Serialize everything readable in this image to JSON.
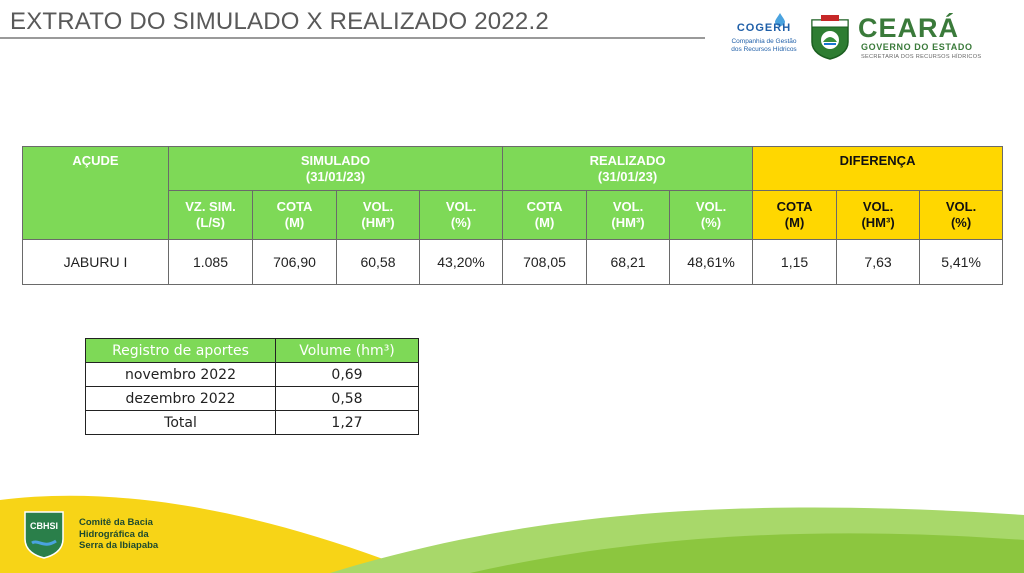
{
  "header": {
    "title": "EXTRATO DO SIMULADO X REALIZADO 2022.2",
    "cogerh_name": "COGERH",
    "cogerh_sub": [
      "Companhia de Gestão",
      "dos Recursos Hídricos"
    ],
    "state_name": "CEARÁ",
    "state_gov": "GOVERNO DO ESTADO",
    "state_sec": "SECRETARIA DOS RECURSOS HÍDRICOS"
  },
  "main_table": {
    "col_acude": "AÇUDE",
    "group_simulado": "SIMULADO",
    "group_simulado_date": "(31/01/23)",
    "group_realizado": "REALIZADO",
    "group_realizado_date": "(31/01/23)",
    "group_diferenca": "DIFERENÇA",
    "sub_headers": [
      [
        "VZ. SIM.",
        "(L/S)"
      ],
      [
        "COTA",
        "(M)"
      ],
      [
        "VOL.",
        "(HM³)"
      ],
      [
        "VOL.",
        "(%)"
      ],
      [
        "COTA",
        "(M)"
      ],
      [
        "VOL.",
        "(HM³)"
      ],
      [
        "VOL.",
        "(%)"
      ],
      [
        "COTA",
        "(M)"
      ],
      [
        "VOL.",
        "(HM³)"
      ],
      [
        "VOL.",
        "(%)"
      ]
    ],
    "row": [
      "JABURU I",
      "1.085",
      "706,90",
      "60,58",
      "43,20%",
      "708,05",
      "68,21",
      "48,61%",
      "1,15",
      "7,63",
      "5,41%"
    ]
  },
  "aportes_table": {
    "header": [
      "Registro de aportes",
      "Volume (hm³)"
    ],
    "rows": [
      [
        "novembro 2022",
        "0,69"
      ],
      [
        "dezembro 2022",
        "0,58"
      ],
      [
        "Total",
        "1,27"
      ]
    ]
  },
  "footer": {
    "badge": "CBHSI",
    "committee_lines": [
      "Comitê da Bacia",
      "Hidrográfica da",
      "Serra da Ibiapaba"
    ]
  },
  "colors": {
    "table_green": "#7ed957",
    "table_yellow": "#ffd700",
    "footer_yellow": "#f7d417",
    "footer_green": "#8cc63f"
  }
}
